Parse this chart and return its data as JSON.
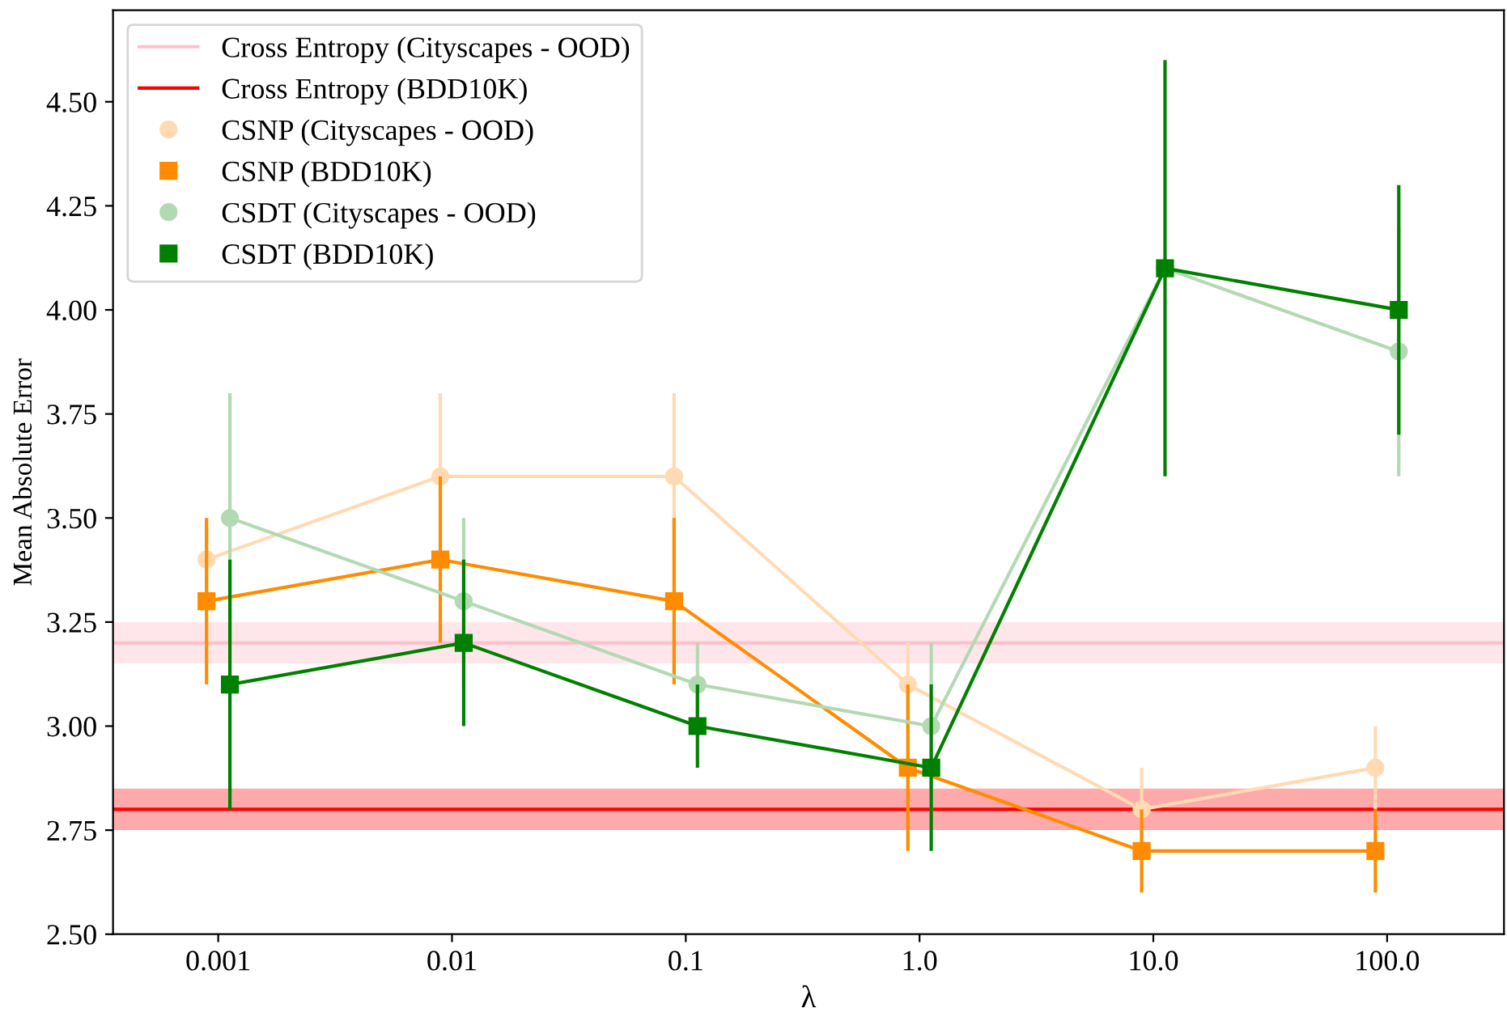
{
  "chart_data": {
    "type": "line",
    "xlabel": "λ",
    "ylabel": "Mean Absolute Error",
    "categories": [
      "0.001",
      "0.01",
      "0.1",
      "1.0",
      "10.0",
      "100.0"
    ],
    "ylim": [
      2.5,
      4.72
    ],
    "yticks": [
      {
        "value": 2.5,
        "label": "2.50"
      },
      {
        "value": 2.75,
        "label": "2.75"
      },
      {
        "value": 3.0,
        "label": "3.00"
      },
      {
        "value": 3.25,
        "label": "3.25"
      },
      {
        "value": 3.5,
        "label": "3.50"
      },
      {
        "value": 3.75,
        "label": "3.75"
      },
      {
        "value": 4.0,
        "label": "4.00"
      },
      {
        "value": 4.25,
        "label": "4.25"
      },
      {
        "value": 4.5,
        "label": "4.50"
      }
    ],
    "ref_lines": [
      {
        "axis": "y",
        "value": 3.2,
        "label": "Cross Entropy (Cityscapes - OOD)",
        "color": "#ffc0cb",
        "line_style": "solid"
      },
      {
        "axis": "y",
        "value": 2.8,
        "label": "Cross Entropy (BDD10K)",
        "color": "#ff0000",
        "line_style": "solid"
      }
    ],
    "bands": [
      {
        "axis": "y",
        "from": 3.15,
        "to": 3.25,
        "color": "#ffe6ea"
      },
      {
        "axis": "y",
        "from": 2.75,
        "to": 2.85,
        "color": "#ffaaaa"
      }
    ],
    "series": [
      {
        "name": "CSNP (Cityscapes - OOD)",
        "color": "#ffdab3",
        "marker": "circle",
        "values": [
          3.4,
          3.6,
          3.6,
          3.1,
          2.8,
          2.9
        ],
        "errors": [
          0.1,
          0.2,
          0.2,
          0.1,
          0.1,
          0.1
        ]
      },
      {
        "name": "CSNP (BDD10K)",
        "color": "#ff8c00",
        "marker": "square",
        "values": [
          3.3,
          3.4,
          3.3,
          2.9,
          2.7,
          2.7
        ],
        "errors": [
          0.2,
          0.2,
          0.2,
          0.2,
          0.1,
          0.1
        ]
      },
      {
        "name": "CSDT (Cityscapes - OOD)",
        "color": "#b3d9b3",
        "marker": "circle",
        "values": [
          3.5,
          3.3,
          3.1,
          3.0,
          4.1,
          3.9
        ],
        "errors": [
          0.3,
          0.2,
          0.1,
          0.2,
          null,
          0.3
        ]
      },
      {
        "name": "CSDT (BDD10K)",
        "color": "#008000",
        "marker": "square",
        "values": [
          3.1,
          3.2,
          3.0,
          2.9,
          4.1,
          4.0
        ],
        "errors": [
          0.3,
          0.2,
          0.1,
          0.2,
          0.5,
          0.3
        ]
      }
    ],
    "legend": "top left",
    "grid": false
  }
}
